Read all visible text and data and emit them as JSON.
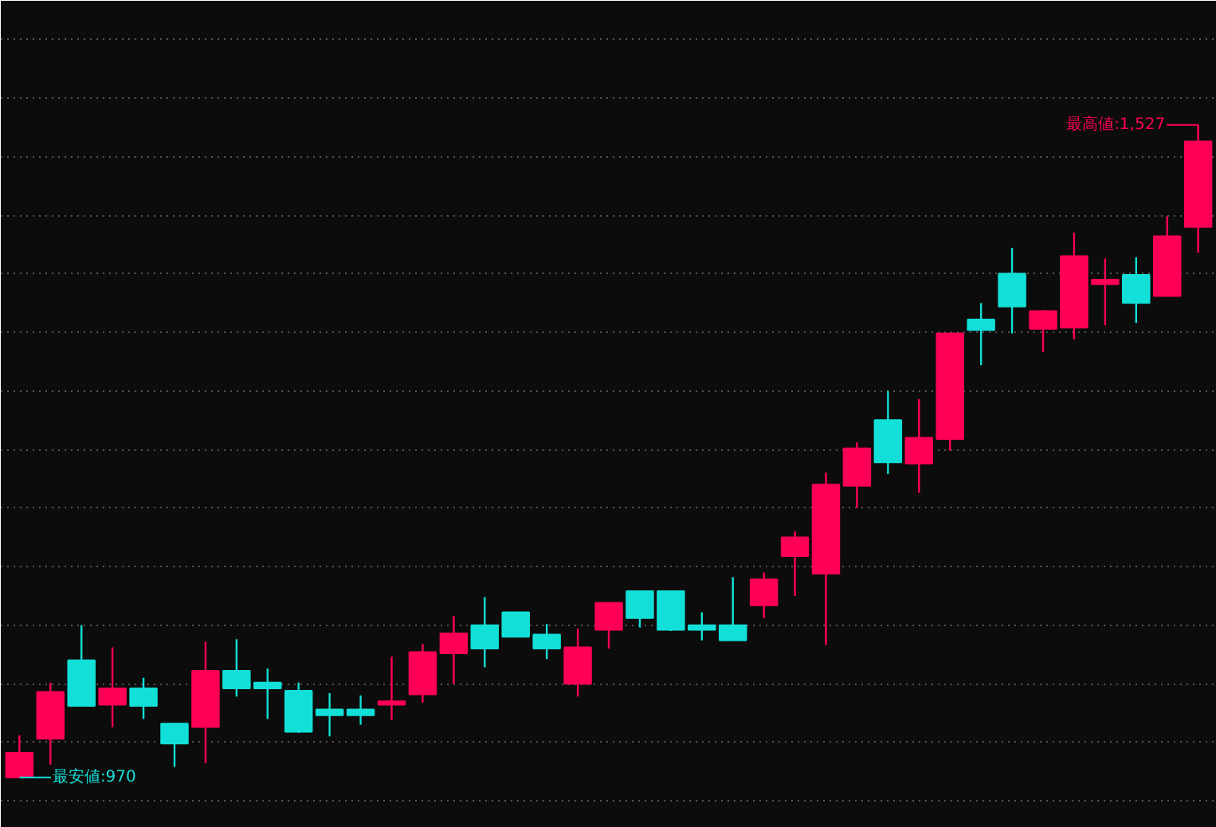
{
  "chart_data": {
    "type": "candlestick",
    "categories": [
      null,
      null,
      null,
      null,
      null,
      null,
      null,
      null,
      null,
      null,
      null,
      null,
      null,
      null,
      null,
      null,
      null,
      null,
      null,
      null,
      null,
      null,
      null,
      null,
      null,
      null,
      null,
      null,
      null,
      null,
      null,
      null,
      null,
      null,
      null,
      null,
      null,
      null,
      null
    ],
    "ohlc": [
      [
        970,
        1006,
        970,
        991
      ],
      [
        1003,
        1051,
        981,
        1043
      ],
      [
        1070,
        1100,
        1031,
        1031
      ],
      [
        1032,
        1081,
        1013,
        1046
      ],
      [
        1046,
        1055,
        1020,
        1031
      ],
      [
        1016,
        1016,
        979,
        999
      ],
      [
        1013,
        1086,
        982,
        1061
      ],
      [
        1061,
        1088,
        1039,
        1046
      ],
      [
        1051,
        1063,
        1020,
        1046
      ],
      [
        1044,
        1051,
        1008,
        1009
      ],
      [
        1028,
        1042,
        1005,
        1023
      ],
      [
        1028,
        1040,
        1015,
        1023
      ],
      [
        1032,
        1073,
        1019,
        1035
      ],
      [
        1041,
        1084,
        1034,
        1077
      ],
      [
        1076,
        1108,
        1050,
        1093
      ],
      [
        1100,
        1124,
        1064,
        1080
      ],
      [
        1111,
        1111,
        1090,
        1090
      ],
      [
        1092,
        1101,
        1071,
        1080
      ],
      [
        1050,
        1097,
        1039,
        1081
      ],
      [
        1096,
        1119,
        1080,
        1119
      ],
      [
        1129,
        1129,
        1098,
        1106
      ],
      [
        1129,
        1129,
        1095,
        1096
      ],
      [
        1100,
        1111,
        1087,
        1096
      ],
      [
        1100,
        1141,
        1087,
        1087
      ],
      [
        1117,
        1145,
        1106,
        1139
      ],
      [
        1159,
        1180,
        1125,
        1175
      ],
      [
        1144,
        1230,
        1083,
        1220
      ],
      [
        1219,
        1256,
        1200,
        1251
      ],
      [
        1275,
        1300,
        1229,
        1239
      ],
      [
        1238,
        1293,
        1213,
        1260
      ],
      [
        1259,
        1349,
        1249,
        1349
      ],
      [
        1361,
        1375,
        1322,
        1352
      ],
      [
        1400,
        1422,
        1349,
        1372
      ],
      [
        1353,
        1369,
        1333,
        1368
      ],
      [
        1354,
        1435,
        1344,
        1415
      ],
      [
        1391,
        1413,
        1356,
        1395
      ],
      [
        1399,
        1414,
        1358,
        1375
      ],
      [
        1381,
        1449,
        1381,
        1432
      ],
      [
        1440,
        1527,
        1418,
        1513
      ]
    ],
    "colors": [
      "#ff0055",
      "#ff0055",
      "#12e0d8",
      "#ff0055",
      "#12e0d8",
      "#12e0d8",
      "#ff0055",
      "#12e0d8",
      "#12e0d8",
      "#12e0d8",
      "#12e0d8",
      "#12e0d8",
      "#ff0055",
      "#ff0055",
      "#ff0055",
      "#12e0d8",
      "#12e0d8",
      "#12e0d8",
      "#ff0055",
      "#ff0055",
      "#12e0d8",
      "#12e0d8",
      "#12e0d8",
      "#12e0d8",
      "#ff0055",
      "#ff0055",
      "#ff0055",
      "#ff0055",
      "#12e0d8",
      "#ff0055",
      "#ff0055",
      "#12e0d8",
      "#12e0d8",
      "#ff0055",
      "#ff0055",
      "#ff0055",
      "#12e0d8",
      "#ff0055",
      "#ff0055"
    ],
    "ylim": [
      927,
      1633
    ],
    "yticks": [
      {
        "value": 950,
        "label": null
      },
      {
        "value": 1000,
        "label": null
      },
      {
        "value": 1050,
        "label": null
      },
      {
        "value": 1100,
        "label": null
      },
      {
        "value": 1150,
        "label": null
      },
      {
        "value": 1200,
        "label": null
      },
      {
        "value": 1250,
        "label": null
      },
      {
        "value": 1300,
        "label": null
      },
      {
        "value": 1350,
        "label": null
      },
      {
        "value": 1400,
        "label": null
      },
      {
        "value": 1450,
        "label": null
      },
      {
        "value": 1500,
        "label": null
      },
      {
        "value": 1550,
        "label": null
      },
      {
        "value": 1600,
        "label": null
      }
    ],
    "grid": "y",
    "tick_labels": false,
    "annotations": [
      "最高値:1,527",
      "最安値:970"
    ]
  }
}
